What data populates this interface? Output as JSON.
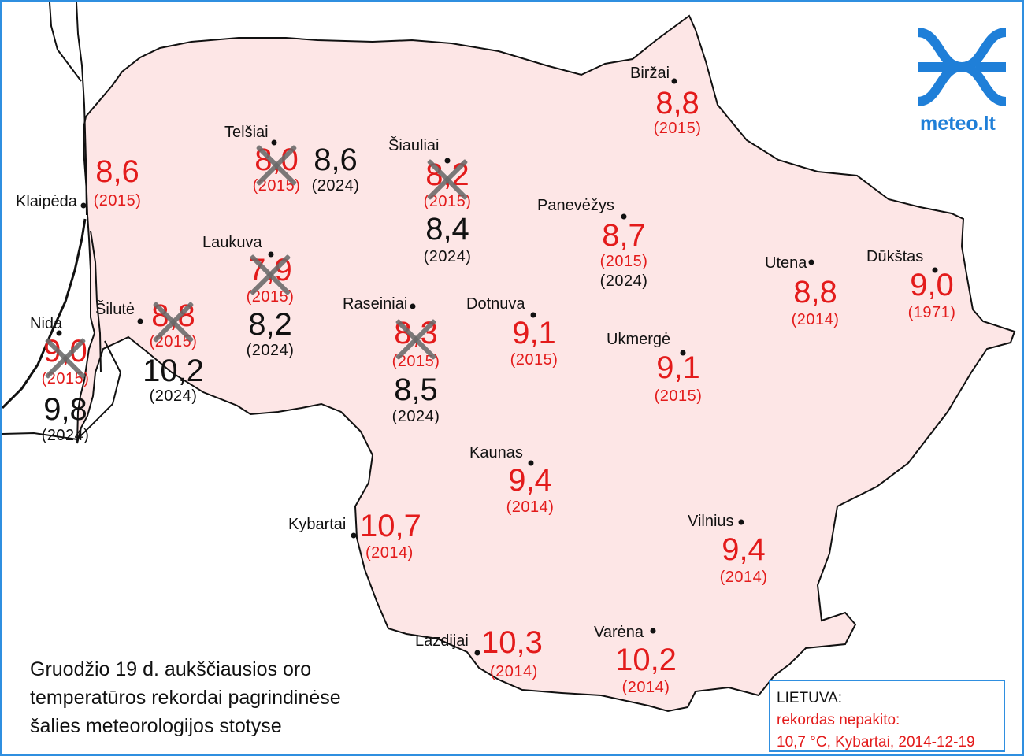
{
  "brand": {
    "name": "meteo.lt",
    "color": "#1f7fd8",
    "logo_icon": "wave-cross-logo"
  },
  "title_lines": [
    "Gruodžio 19 d. aukščiausios oro",
    "temperatūros rekordai pagrindinėse",
    "šalies meteorologijos stotyse"
  ],
  "legend": {
    "heading": "LIETUVA:",
    "line1": "rekordas nepakito:",
    "line2": "10,7 °C, Kybartai, 2014-12-19"
  },
  "colors": {
    "old_record": "#e31b1b",
    "new_record": "#111111",
    "land": "#fde6e6",
    "frame": "#2f8fe0",
    "cross": "#696969"
  },
  "stations": [
    {
      "name": "Biržai",
      "record": "8,8",
      "record_year": "(2015)"
    },
    {
      "name": "Telšiai",
      "record": "8,0",
      "record_year": "(2015)",
      "new_record": "8,6",
      "new_year": "(2024)"
    },
    {
      "name": "Šiauliai",
      "record": "8,2",
      "record_year": "(2015)",
      "new_record": "8,4",
      "new_year": "(2024)"
    },
    {
      "name": "Klaipėda",
      "record": "8,6",
      "record_year": "(2015)"
    },
    {
      "name": "Panevėžys",
      "record": "8,7",
      "record_year": "(2015)",
      "extra_year": "(2024)"
    },
    {
      "name": "Laukuva",
      "record": "7,9",
      "record_year": "(2015)",
      "new_record": "8,2",
      "new_year": "(2024)"
    },
    {
      "name": "Utena",
      "record": "8,8",
      "record_year": "(2014)"
    },
    {
      "name": "Dūkštas",
      "record": "9,0",
      "record_year": "(1971)"
    },
    {
      "name": "Nida",
      "record": "9,0",
      "record_year": "(2015)",
      "new_record": "9,8",
      "new_year": "(2024)"
    },
    {
      "name": "Šilutė",
      "record": "8,8",
      "record_year": "(2015)",
      "new_record": "10,2",
      "new_year": "(2024)"
    },
    {
      "name": "Raseiniai",
      "record": "8,3",
      "record_year": "(2015)",
      "new_record": "8,5",
      "new_year": "(2024)"
    },
    {
      "name": "Dotnuva",
      "record": "9,1",
      "record_year": "(2015)"
    },
    {
      "name": "Ukmergė",
      "record": "9,1",
      "record_year": "(2015)"
    },
    {
      "name": "Kaunas",
      "record": "9,4",
      "record_year": "(2014)"
    },
    {
      "name": "Kybartai",
      "record": "10,7",
      "record_year": "(2014)"
    },
    {
      "name": "Vilnius",
      "record": "9,4",
      "record_year": "(2014)"
    },
    {
      "name": "Lazdijai",
      "record": "10,3",
      "record_year": "(2014)"
    },
    {
      "name": "Varėna",
      "record": "10,2",
      "record_year": "(2014)"
    }
  ]
}
